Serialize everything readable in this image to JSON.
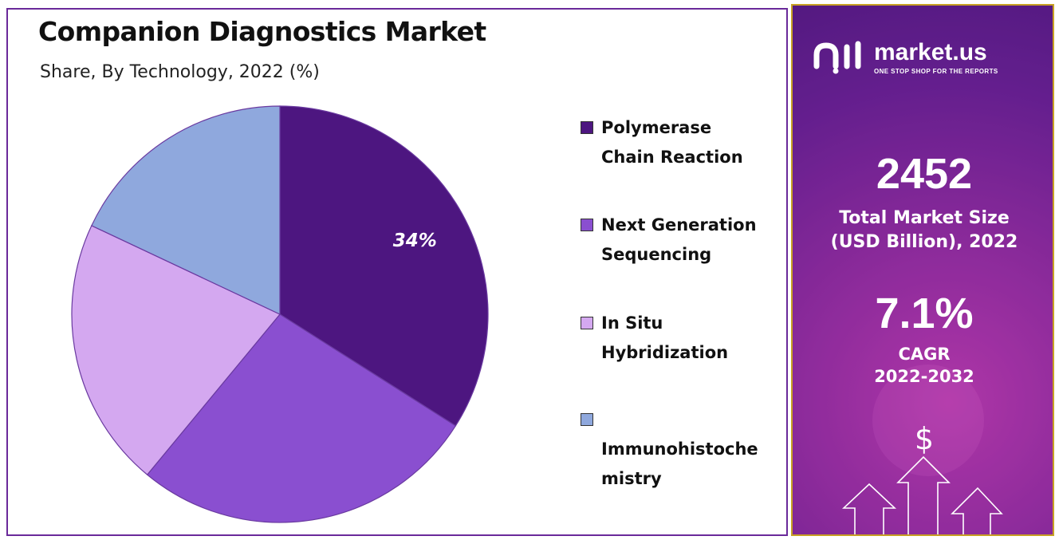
{
  "title": "Companion Diagnostics Market",
  "subtitle": "Share, By Technology, 2022 (%)",
  "colors": {
    "pcr": "#4d1680",
    "ngs": "#8a4fd0",
    "ish": "#d4a8f0",
    "ihc": "#8fa8dd",
    "frame": "#6a2a9a"
  },
  "chart_data": {
    "type": "pie",
    "categories": [
      "Polymerase Chain Reaction",
      "Next Generation Sequencing",
      "In Situ Hybridization",
      "Immunohistochemistry"
    ],
    "values": [
      34,
      27,
      21,
      18
    ],
    "data_labels": [
      "34%",
      "",
      "",
      ""
    ],
    "legend_position": "right"
  },
  "legend": [
    {
      "label": "Polymerase\nChain Reaction"
    },
    {
      "label": "Next Generation\nSequencing"
    },
    {
      "label": "In Situ\nHybridization"
    },
    {
      "label": "\nImmunohistoche\nmistry"
    }
  ],
  "panel": {
    "brand_name": "market.us",
    "brand_tagline": "ONE STOP SHOP FOR THE REPORTS",
    "market_size_value": "2452",
    "market_size_label_1": "Total Market Size",
    "market_size_label_2": "(USD Billion), 2022",
    "cagr_value": "7.1%",
    "cagr_label_1": "CAGR",
    "cagr_label_2": "2022-2032",
    "dollar_icon": "dollar-sign-icon",
    "arrow_icon": "up-arrow-icon"
  }
}
